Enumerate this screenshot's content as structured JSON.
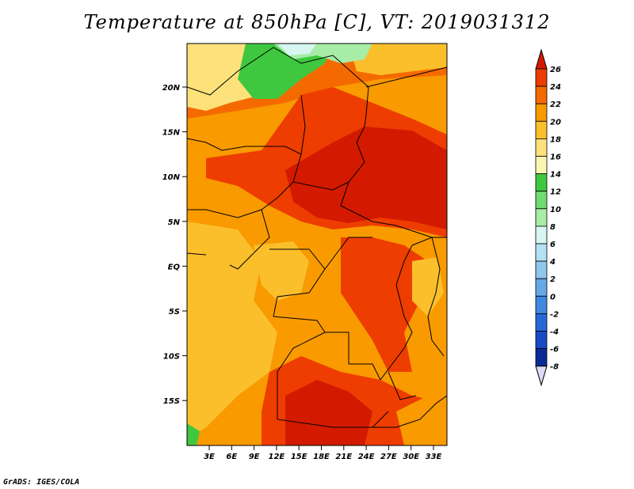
{
  "title": "Temperature at 850hPa [C], VT: 2019031312",
  "footer": "GrADS: IGES/COLA",
  "map": {
    "lat_labels": [
      "20N",
      "15N",
      "10N",
      "5N",
      "EQ",
      "5S",
      "10S",
      "15S"
    ],
    "lon_labels": [
      "3E",
      "6E",
      "9E",
      "12E",
      "15E",
      "18E",
      "21E",
      "24E",
      "27E",
      "30E",
      "33E"
    ]
  },
  "colorbar": {
    "levels": [
      "26",
      "24",
      "22",
      "20",
      "18",
      "16",
      "14",
      "12",
      "10",
      "8",
      "6",
      "4",
      "2",
      "0",
      "-2",
      "-4",
      "-6",
      "-8"
    ],
    "colors": [
      "#d31a00",
      "#ee3d00",
      "#f56a00",
      "#f89a00",
      "#fbbf2c",
      "#fde17a",
      "#fbf5b4",
      "#3fc83f",
      "#6fdc6f",
      "#a7eca7",
      "#d6f6ef",
      "#b6e0f4",
      "#8fc6ee",
      "#66a8e6",
      "#3f88e0",
      "#2768d8",
      "#164bc4",
      "#0a2a96",
      "#061275",
      "#dcdcf4"
    ],
    "top_color": "#d31a00",
    "bottom_color": "#dcdcf4"
  },
  "colors": {
    "deep_red": "#d31a00",
    "red": "#ee3d00",
    "orange": "#f56a00",
    "light_orange": "#f89a00",
    "yellow_orange": "#fbbf2c",
    "pale": "#fde17a",
    "green": "#3fc83f",
    "light_green": "#a7eca7",
    "border": "#000000"
  }
}
